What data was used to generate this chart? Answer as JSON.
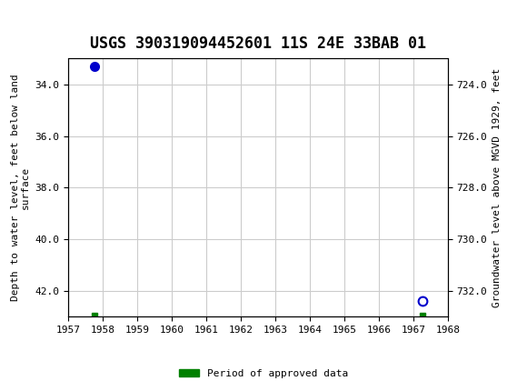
{
  "title": "USGS 390319094452601 11S 24E 33BAB 01",
  "ylabel_left": "Depth to water level, feet below land\nsurface",
  "ylabel_right": "Groundwater level above MGVD 1929, feet",
  "xlim": [
    1957,
    1968
  ],
  "ylim_left": [
    33.0,
    43.0
  ],
  "ylim_right": [
    723.0,
    733.0
  ],
  "xticks": [
    1957,
    1958,
    1959,
    1960,
    1961,
    1962,
    1963,
    1964,
    1965,
    1966,
    1967,
    1968
  ],
  "yticks_left": [
    34.0,
    36.0,
    38.0,
    40.0,
    42.0
  ],
  "yticks_right": [
    724.0,
    726.0,
    728.0,
    730.0,
    732.0
  ],
  "data_points": [
    {
      "x": 1957.75,
      "y_left": 33.3,
      "type": "filled_circle",
      "color": "#0000CC"
    },
    {
      "x": 1967.25,
      "y_left": 42.4,
      "type": "open_circle",
      "color": "#0000CC"
    }
  ],
  "approved_marks": [
    {
      "x": 1957.75,
      "y_left": 42.95
    },
    {
      "x": 1967.25,
      "y_left": 42.95
    }
  ],
  "header_bg": "#007060",
  "plot_bg": "#ffffff",
  "grid_color": "#cccccc",
  "legend_label": "Period of approved data",
  "legend_color": "#008000",
  "title_fontsize": 12,
  "axis_fontsize": 8,
  "tick_fontsize": 8
}
